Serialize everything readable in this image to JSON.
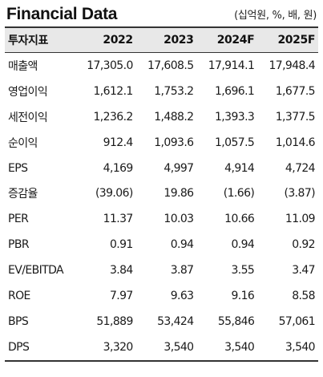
{
  "title": "Financial Data",
  "unit": "(십억원, %, 배, 원)",
  "columns": [
    "투자지표",
    "2022",
    "2023",
    "2024F",
    "2025F"
  ],
  "rows": [
    {
      "label": "매출액",
      "values": [
        "17,305.0",
        "17,608.5",
        "17,914.1",
        "17,948.4"
      ]
    },
    {
      "label": "영업이익",
      "values": [
        "1,612.1",
        "1,753.2",
        "1,696.1",
        "1,677.5"
      ]
    },
    {
      "label": "세전이익",
      "values": [
        "1,236.2",
        "1,488.2",
        "1,393.3",
        "1,377.5"
      ]
    },
    {
      "label": "순이익",
      "values": [
        "912.4",
        "1,093.6",
        "1,057.5",
        "1,014.6"
      ]
    },
    {
      "label": "EPS",
      "values": [
        "4,169",
        "4,997",
        "4,914",
        "4,724"
      ]
    },
    {
      "label": "증감율",
      "values": [
        "(39.06)",
        "19.86",
        "(1.66)",
        "(3.87)"
      ]
    },
    {
      "label": "PER",
      "values": [
        "11.37",
        "10.03",
        "10.66",
        "11.09"
      ]
    },
    {
      "label": "PBR",
      "values": [
        "0.91",
        "0.94",
        "0.94",
        "0.92"
      ]
    },
    {
      "label": "EV/EBITDA",
      "values": [
        "3.84",
        "3.87",
        "3.55",
        "3.47"
      ]
    },
    {
      "label": "ROE",
      "values": [
        "7.97",
        "9.63",
        "9.16",
        "8.58"
      ]
    },
    {
      "label": "BPS",
      "values": [
        "51,889",
        "53,424",
        "55,846",
        "57,061"
      ]
    },
    {
      "label": "DPS",
      "values": [
        "3,320",
        "3,540",
        "3,540",
        "3,540"
      ]
    }
  ]
}
